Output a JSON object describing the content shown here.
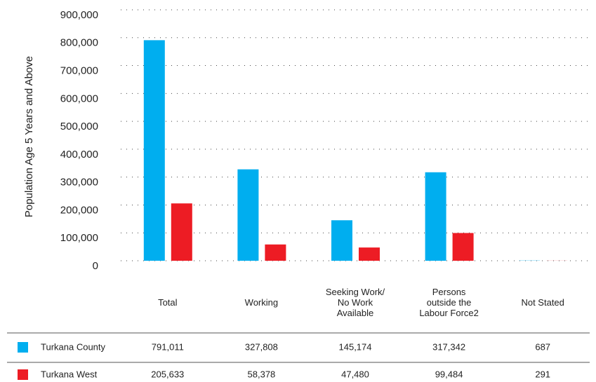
{
  "chart_data": {
    "type": "bar",
    "y_label": "Population Age 5 Years and Above",
    "categories": [
      "Total",
      "Working",
      "Seeking Work/ No Work Available",
      "Persons outside the Labour Force2",
      "Not Stated"
    ],
    "series": [
      {
        "name": "Turkana County",
        "color": "#00aeef",
        "values": [
          791011,
          327808,
          145174,
          317342,
          687
        ],
        "value_labels": [
          "791,011",
          "327,808",
          "145,174",
          "317,342",
          "687"
        ]
      },
      {
        "name": "Turkana West",
        "color": "#ed1c24",
        "values": [
          205633,
          58378,
          47480,
          99484,
          291
        ],
        "value_labels": [
          "205,633",
          "58,378",
          "47,480",
          "99,484",
          "291"
        ]
      }
    ],
    "ylim": [
      0,
      900000
    ],
    "yticks": [
      0,
      {
        "value": 100000,
        "label": "100,000"
      },
      {
        "value": 200000,
        "label": "200,000"
      },
      {
        "value": 300000,
        "label": "300,000"
      },
      {
        "value": 400000,
        "label": "400,000"
      },
      {
        "value": 500000,
        "label": "500,000"
      },
      {
        "value": 600000,
        "label": "600,000"
      },
      {
        "value": 700000,
        "label": "700,000"
      },
      {
        "value": 800000,
        "label": "800,000"
      },
      {
        "value": 900000,
        "label": "900,000"
      }
    ],
    "grid": true
  }
}
